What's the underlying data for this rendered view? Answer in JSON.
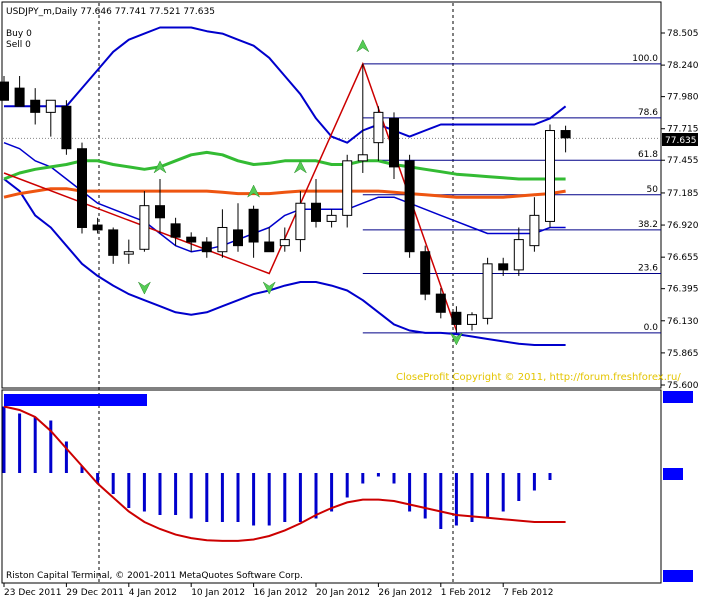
{
  "header": {
    "symbol_line": "USDJPY_m,Daily  77.646 77.741 77.521 77.635",
    "buy": "Buy 0",
    "sell": "Sell 0"
  },
  "copyright": "CloseProfit Copyright © 2011, http://forum.freshforex.ru/",
  "footer": "Riston Capital Terminal, © 2001-2011 MetaQuotes Software Corp.",
  "indicator": {
    "title": "",
    "label_top": "",
    "label_mid": "",
    "label_bottom": ""
  },
  "colors": {
    "bull": "#ffffff",
    "bear": "#000000",
    "bands": "#0000cc",
    "ma_fast": "#33bb33",
    "ma_slow": "#ee5511",
    "zigzag": "#cc0000",
    "arrows": "#55cc55",
    "fibo": "#000088",
    "hist": "#0000cc",
    "signal": "#cc0000",
    "price_box": "#000000"
  },
  "chart_data": {
    "type": "candlestick",
    "y_ticks": [
      "78.505",
      "78.240",
      "77.980",
      "77.715",
      "77.455",
      "77.185",
      "76.920",
      "76.655",
      "76.395",
      "76.130",
      "75.865",
      "75.600"
    ],
    "current_price": "77.635",
    "x_ticks": [
      "23 Dec 2011",
      "29 Dec 2011",
      "4 Jan 2012",
      "10 Jan 2012",
      "16 Jan 2012",
      "20 Jan 2012",
      "26 Jan 2012",
      "1 Feb 2012",
      "7 Feb 2012"
    ],
    "fibo_levels": [
      {
        "label": "100.0",
        "price": 78.25
      },
      {
        "label": "78.6",
        "price": 77.805
      },
      {
        "label": "61.8",
        "price": 77.455
      },
      {
        "label": "50",
        "price": 77.17
      },
      {
        "label": "38.2",
        "price": 76.88
      },
      {
        "label": "23.6",
        "price": 76.52
      },
      {
        "label": "0.0",
        "price": 76.03
      }
    ],
    "candles": [
      {
        "o": 78.1,
        "h": 78.15,
        "l": 77.95,
        "c": 77.95
      },
      {
        "o": 78.05,
        "h": 78.15,
        "l": 77.9,
        "c": 77.9
      },
      {
        "o": 77.95,
        "h": 78.05,
        "l": 77.75,
        "c": 77.85
      },
      {
        "o": 77.85,
        "h": 77.95,
        "l": 77.65,
        "c": 77.95
      },
      {
        "o": 77.9,
        "h": 77.95,
        "l": 77.5,
        "c": 77.55
      },
      {
        "o": 77.55,
        "h": 77.6,
        "l": 76.85,
        "c": 76.9
      },
      {
        "o": 76.92,
        "h": 76.98,
        "l": 76.85,
        "c": 76.88
      },
      {
        "o": 76.88,
        "h": 76.9,
        "l": 76.6,
        "c": 76.67
      },
      {
        "o": 76.68,
        "h": 76.8,
        "l": 76.6,
        "c": 76.7
      },
      {
        "o": 76.72,
        "h": 77.2,
        "l": 76.7,
        "c": 77.08
      },
      {
        "o": 77.08,
        "h": 77.3,
        "l": 76.85,
        "c": 76.98
      },
      {
        "o": 76.93,
        "h": 76.98,
        "l": 76.75,
        "c": 76.82
      },
      {
        "o": 76.82,
        "h": 76.86,
        "l": 76.7,
        "c": 76.78
      },
      {
        "o": 76.78,
        "h": 76.82,
        "l": 76.65,
        "c": 76.7
      },
      {
        "o": 76.7,
        "h": 77.05,
        "l": 76.65,
        "c": 76.9
      },
      {
        "o": 76.88,
        "h": 77.1,
        "l": 76.7,
        "c": 76.75
      },
      {
        "o": 77.05,
        "h": 77.08,
        "l": 76.65,
        "c": 76.78
      },
      {
        "o": 76.78,
        "h": 76.9,
        "l": 76.7,
        "c": 76.7
      },
      {
        "o": 76.75,
        "h": 76.9,
        "l": 76.7,
        "c": 76.8
      },
      {
        "o": 76.8,
        "h": 77.2,
        "l": 76.7,
        "c": 77.1
      },
      {
        "o": 77.1,
        "h": 77.3,
        "l": 76.9,
        "c": 76.95
      },
      {
        "o": 76.95,
        "h": 77.05,
        "l": 76.9,
        "c": 77.0
      },
      {
        "o": 77.0,
        "h": 77.5,
        "l": 76.9,
        "c": 77.45
      },
      {
        "o": 77.45,
        "h": 78.25,
        "l": 77.35,
        "c": 77.5
      },
      {
        "o": 77.6,
        "h": 77.9,
        "l": 77.45,
        "c": 77.85
      },
      {
        "o": 77.8,
        "h": 77.85,
        "l": 77.3,
        "c": 77.4
      },
      {
        "o": 77.45,
        "h": 77.5,
        "l": 76.65,
        "c": 76.7
      },
      {
        "o": 76.7,
        "h": 76.75,
        "l": 76.3,
        "c": 76.35
      },
      {
        "o": 76.35,
        "h": 76.4,
        "l": 76.15,
        "c": 76.2
      },
      {
        "o": 76.2,
        "h": 76.25,
        "l": 76.03,
        "c": 76.1
      },
      {
        "o": 76.1,
        "h": 76.2,
        "l": 76.05,
        "c": 76.18
      },
      {
        "o": 76.15,
        "h": 76.65,
        "l": 76.1,
        "c": 76.6
      },
      {
        "o": 76.6,
        "h": 76.65,
        "l": 76.5,
        "c": 76.55
      },
      {
        "o": 76.55,
        "h": 76.9,
        "l": 76.5,
        "c": 76.8
      },
      {
        "o": 76.75,
        "h": 77.15,
        "l": 76.7,
        "c": 77.0
      },
      {
        "o": 76.95,
        "h": 77.75,
        "l": 76.9,
        "c": 77.7
      },
      {
        "o": 77.7,
        "h": 77.74,
        "l": 77.52,
        "c": 77.64
      }
    ],
    "bands_upper": [
      77.9,
      77.9,
      77.9,
      77.9,
      77.9,
      78.05,
      78.2,
      78.35,
      78.45,
      78.5,
      78.55,
      78.55,
      78.55,
      78.52,
      78.5,
      78.45,
      78.4,
      78.3,
      78.15,
      78.0,
      77.8,
      77.65,
      77.6,
      77.7,
      77.75,
      77.7,
      77.65,
      77.7,
      77.75,
      77.75,
      77.75,
      77.75,
      77.75,
      77.75,
      77.75,
      77.8,
      77.9
    ],
    "bands_middle": [
      77.6,
      77.55,
      77.45,
      77.4,
      77.3,
      77.2,
      77.1,
      77.05,
      77.0,
      76.95,
      76.85,
      76.75,
      76.7,
      76.72,
      76.75,
      76.8,
      76.85,
      76.9,
      77.0,
      77.05,
      77.05,
      77.05,
      77.05,
      77.1,
      77.15,
      77.15,
      77.1,
      77.05,
      77.0,
      76.95,
      76.9,
      76.85,
      76.85,
      76.85,
      76.85,
      76.9,
      76.9
    ],
    "bands_lower": [
      77.3,
      77.2,
      77.0,
      76.9,
      76.75,
      76.6,
      76.5,
      76.42,
      76.35,
      76.3,
      76.25,
      76.2,
      76.18,
      76.2,
      76.25,
      76.3,
      76.35,
      76.38,
      76.42,
      76.45,
      76.45,
      76.42,
      76.38,
      76.3,
      76.2,
      76.1,
      76.05,
      76.03,
      76.03,
      76.02,
      76.0,
      75.98,
      75.96,
      75.94,
      75.93,
      75.93,
      75.93
    ],
    "ma_fast": [
      77.3,
      77.35,
      77.38,
      77.4,
      77.42,
      77.45,
      77.45,
      77.42,
      77.4,
      77.38,
      77.4,
      77.45,
      77.5,
      77.52,
      77.5,
      77.45,
      77.42,
      77.43,
      77.45,
      77.45,
      77.45,
      77.42,
      77.42,
      77.45,
      77.45,
      77.42,
      77.4,
      77.38,
      77.36,
      77.34,
      77.33,
      77.32,
      77.31,
      77.3,
      77.3,
      77.3,
      77.3
    ],
    "ma_slow": [
      77.15,
      77.18,
      77.2,
      77.22,
      77.22,
      77.2,
      77.2,
      77.2,
      77.2,
      77.2,
      77.2,
      77.2,
      77.2,
      77.2,
      77.19,
      77.18,
      77.18,
      77.18,
      77.19,
      77.2,
      77.2,
      77.2,
      77.2,
      77.2,
      77.2,
      77.19,
      77.18,
      77.17,
      77.16,
      77.15,
      77.15,
      77.15,
      77.15,
      77.16,
      77.17,
      77.18,
      77.2
    ],
    "zigzag": [
      {
        "i": 0,
        "p": 77.35
      },
      {
        "i": 17,
        "p": 76.52
      },
      {
        "i": 23,
        "p": 78.25
      },
      {
        "i": 29,
        "p": 76.05
      }
    ],
    "arrows_up": [
      {
        "i": 9,
        "p": 76.4
      },
      {
        "i": 17,
        "p": 76.4
      },
      {
        "i": 29,
        "p": 75.98
      }
    ],
    "arrows_down": [
      {
        "i": 10,
        "p": 77.4
      },
      {
        "i": 16,
        "p": 77.2
      },
      {
        "i": 19,
        "p": 77.4
      },
      {
        "i": 23,
        "p": 78.4
      }
    ],
    "histogram": [
      0.95,
      0.85,
      0.8,
      0.75,
      0.45,
      0.1,
      -0.15,
      -0.3,
      -0.5,
      -0.55,
      -0.6,
      -0.6,
      -0.65,
      -0.7,
      -0.7,
      -0.7,
      -0.75,
      -0.75,
      -0.7,
      -0.7,
      -0.65,
      -0.55,
      -0.35,
      -0.15,
      -0.05,
      -0.15,
      -0.55,
      -0.65,
      -0.8,
      -0.75,
      -0.7,
      -0.65,
      -0.55,
      -0.4,
      -0.25,
      -0.1,
      0.0
    ],
    "signal": [
      0.95,
      0.9,
      0.8,
      0.6,
      0.35,
      0.1,
      -0.15,
      -0.35,
      -0.55,
      -0.7,
      -0.8,
      -0.88,
      -0.93,
      -0.96,
      -0.97,
      -0.97,
      -0.95,
      -0.9,
      -0.82,
      -0.72,
      -0.6,
      -0.5,
      -0.42,
      -0.38,
      -0.38,
      -0.4,
      -0.45,
      -0.5,
      -0.55,
      -0.6,
      -0.62,
      -0.64,
      -0.66,
      -0.68,
      -0.7,
      -0.7,
      -0.7
    ]
  }
}
